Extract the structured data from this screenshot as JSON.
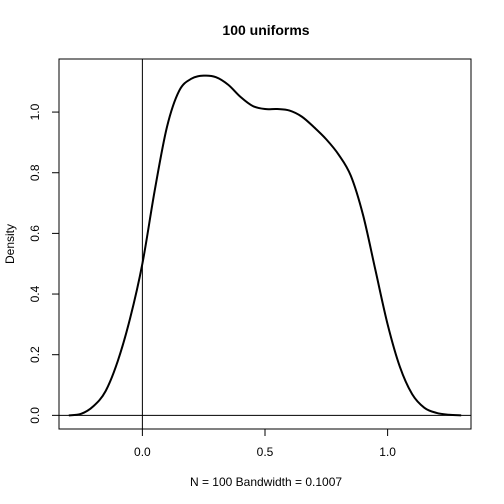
{
  "chart_data": {
    "type": "line",
    "title": "100 uniforms",
    "xlabel": "N = 100   Bandwidth = 0.1007",
    "ylabel": "Density",
    "xlim": [
      -0.34,
      1.34
    ],
    "ylim": [
      -0.045,
      1.175
    ],
    "x_ticks": [
      0.0,
      0.5,
      1.0
    ],
    "x_tick_labels": [
      "0.0",
      "0.5",
      "1.0"
    ],
    "y_ticks": [
      0.0,
      0.2,
      0.4,
      0.6,
      0.8,
      1.0
    ],
    "y_tick_labels": [
      "0.0",
      "0.2",
      "0.4",
      "0.6",
      "0.8",
      "1.0"
    ],
    "grid": false,
    "legend": "none",
    "reference_lines": {
      "horizontal_y": 0.0,
      "vertical_x": 0.0
    },
    "series": [
      {
        "color": "#000000",
        "x": [
          -0.3,
          -0.25,
          -0.2,
          -0.15,
          -0.1,
          -0.05,
          0.0,
          0.05,
          0.1,
          0.15,
          0.2,
          0.25,
          0.3,
          0.35,
          0.4,
          0.45,
          0.5,
          0.55,
          0.6,
          0.65,
          0.7,
          0.75,
          0.8,
          0.85,
          0.9,
          0.95,
          1.0,
          1.05,
          1.1,
          1.15,
          1.2,
          1.25,
          1.3
        ],
        "y": [
          0.0,
          0.005,
          0.03,
          0.08,
          0.18,
          0.32,
          0.5,
          0.74,
          0.95,
          1.07,
          1.11,
          1.12,
          1.115,
          1.09,
          1.05,
          1.02,
          1.01,
          1.01,
          1.005,
          0.985,
          0.95,
          0.91,
          0.86,
          0.79,
          0.66,
          0.48,
          0.3,
          0.16,
          0.07,
          0.025,
          0.008,
          0.002,
          0.0
        ]
      }
    ]
  }
}
